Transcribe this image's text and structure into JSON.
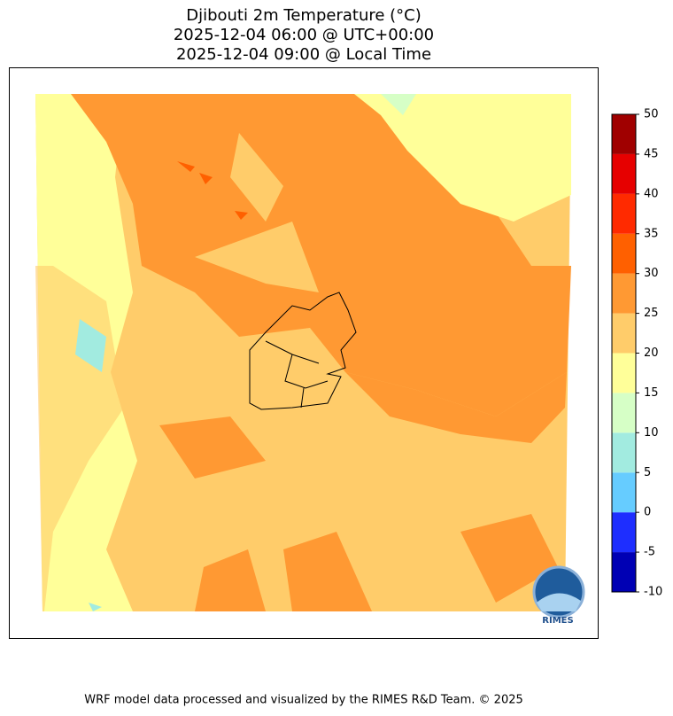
{
  "title": [
    "Djibouti 2m Temperature (°C)",
    "2025-12-04 06:00 @ UTC+00:00",
    "2025-12-04 09:00 @ Local Time"
  ],
  "colorbar": {
    "levels": [
      -10,
      -5,
      0,
      5,
      10,
      15,
      20,
      25,
      30,
      35,
      40,
      45,
      50
    ],
    "colors": [
      "#0000b4",
      "#1e2eff",
      "#66ccff",
      "#a2ebe0",
      "#d6ffc6",
      "#ffff99",
      "#ffcc6a",
      "#ff9933",
      "#ff6000",
      "#ff2a00",
      "#e60000",
      "#a00000"
    ]
  },
  "logo_text": "RIMES",
  "footer": "WRF model data processed and visualized by the RIMES R&D Team. © 2025"
}
